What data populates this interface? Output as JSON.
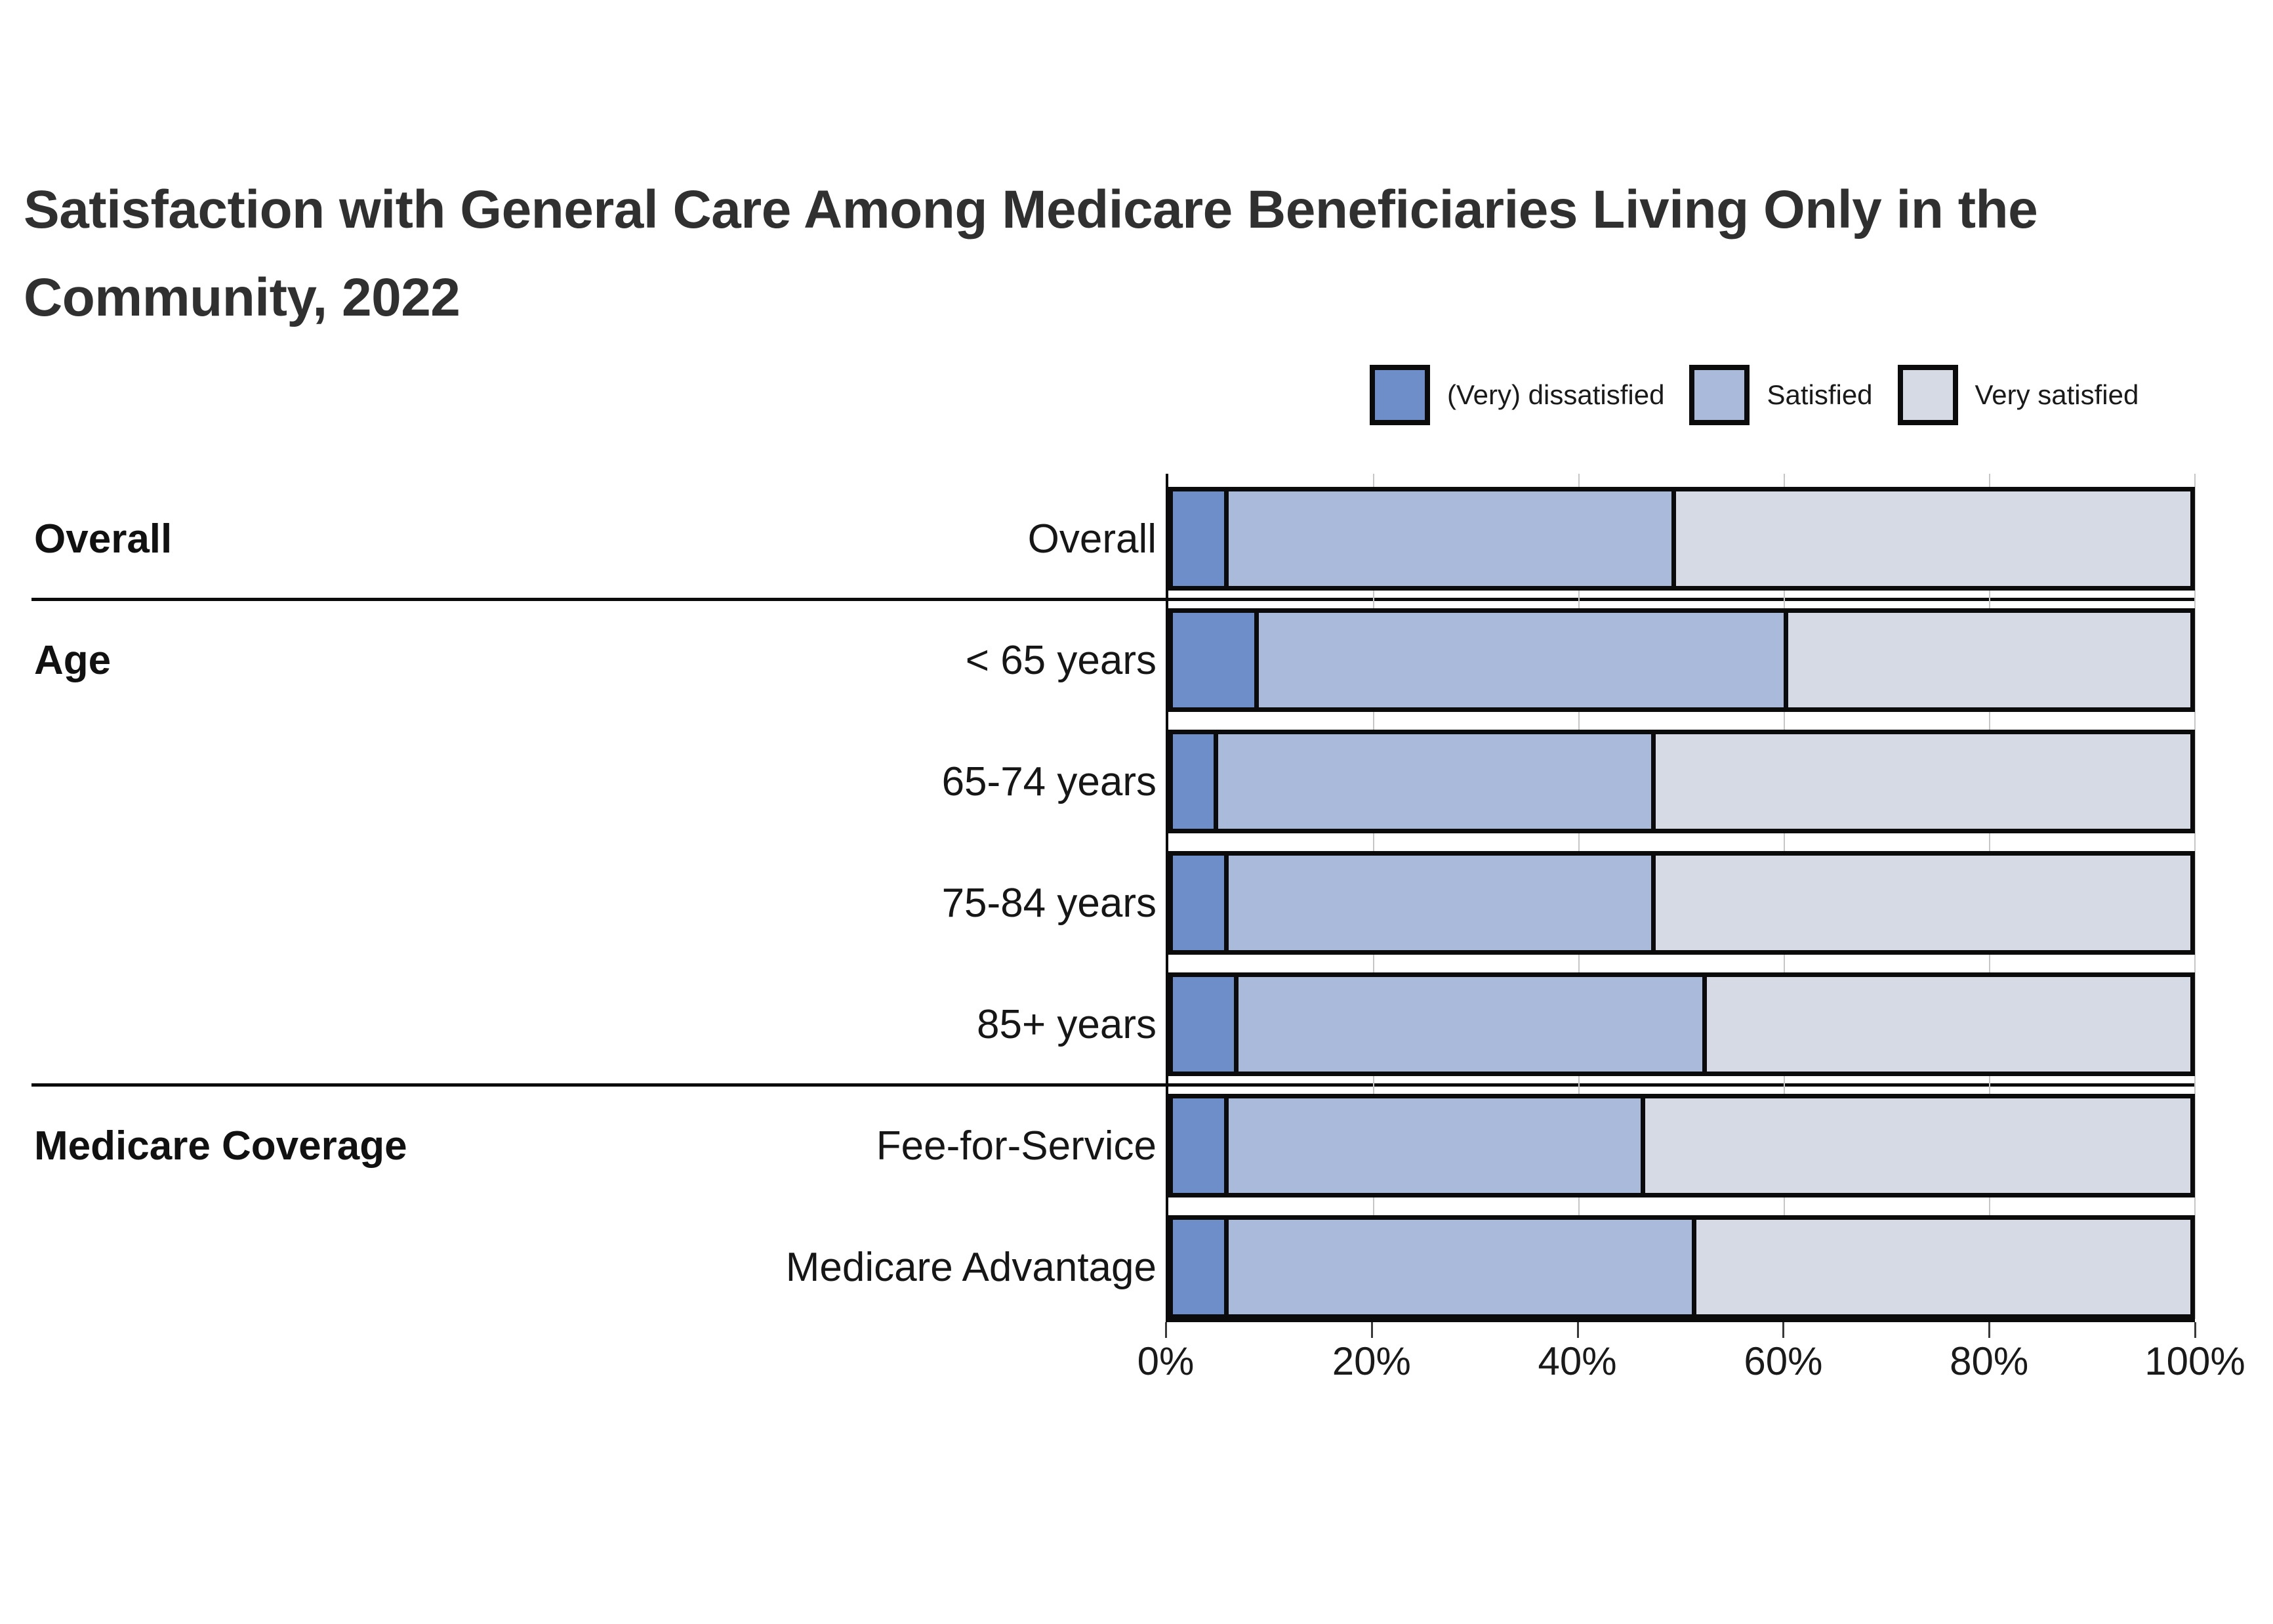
{
  "title": {
    "text": "Satisfaction with General Care Among Medicare Beneficiaries Living Only in the Community, 2022",
    "lines": [
      "Satisfaction with General Care Among Medicare Beneficiaries Living Only in the",
      "Community, 2022"
    ]
  },
  "chart_data": {
    "type": "bar",
    "orientation": "horizontal",
    "stacked": true,
    "unit": "percent",
    "title": "Satisfaction with General Care Among Medicare Beneficiaries Living Only in the Community, 2022",
    "xlabel": "",
    "ylabel": "",
    "xlim": [
      0,
      100
    ],
    "x_ticks": [
      "0%",
      "20%",
      "40%",
      "60%",
      "80%",
      "100%"
    ],
    "grid": true,
    "legend_position": "top-right",
    "series": [
      {
        "name": "(Very) dissatisfied",
        "color": "#6E8ECA"
      },
      {
        "name": "Satisfied",
        "color": "#A9BADB"
      },
      {
        "name": "Very satisfied",
        "color": "#D5DAE4"
      }
    ],
    "groups": [
      {
        "group": "Overall",
        "rows": [
          {
            "label": "Overall",
            "values": [
              5,
              44,
              51
            ]
          }
        ]
      },
      {
        "group": "Age",
        "rows": [
          {
            "label": "< 65 years",
            "values": [
              8,
              52,
              40
            ]
          },
          {
            "label": "65-74 years",
            "values": [
              4,
              43,
              53
            ]
          },
          {
            "label": "75-84 years",
            "values": [
              5,
              42,
              53
            ]
          },
          {
            "label": "85+ years",
            "values": [
              6,
              46,
              48
            ]
          }
        ]
      },
      {
        "group": "Medicare Coverage",
        "rows": [
          {
            "label": "Fee-for-Service",
            "values": [
              5,
              41,
              54
            ]
          },
          {
            "label": "Medicare Advantage",
            "values": [
              5,
              46,
              49
            ]
          }
        ]
      }
    ],
    "border_color": "#0b0b0b",
    "gridline_color": "#c6c6c6"
  }
}
